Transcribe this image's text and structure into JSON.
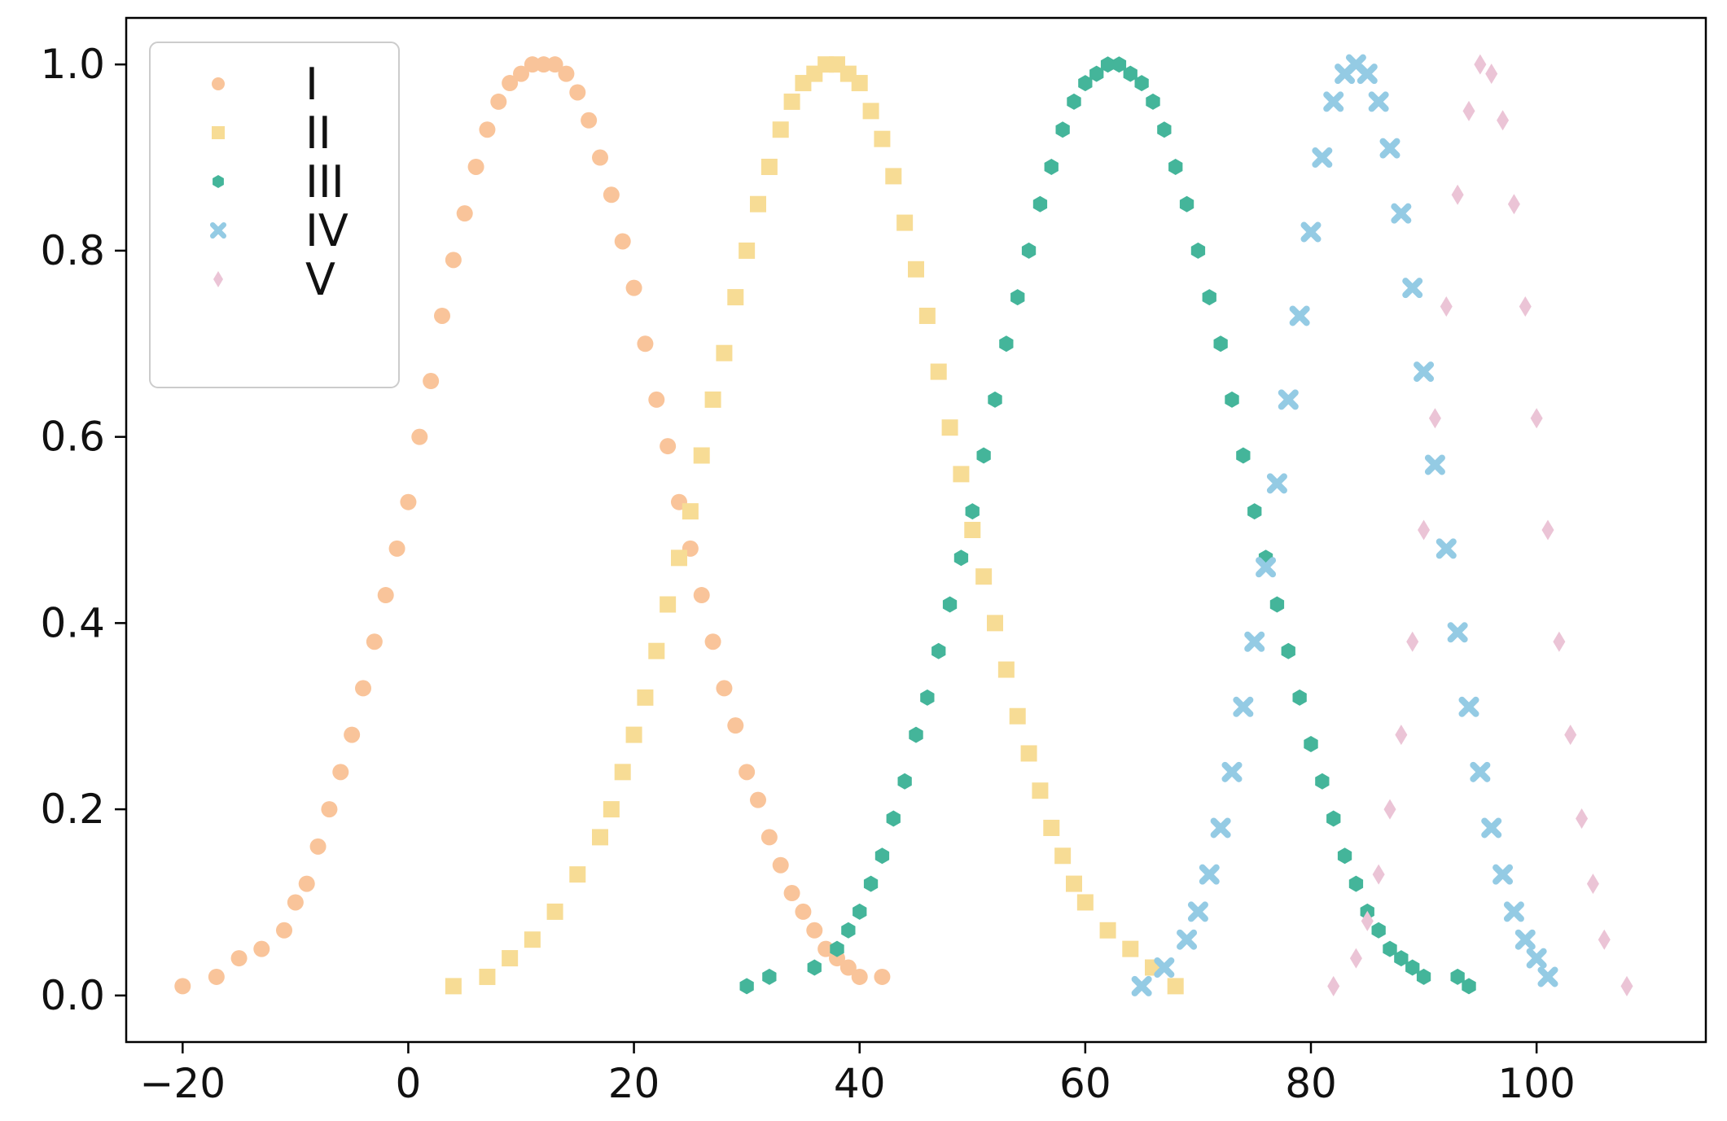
{
  "chart_data": {
    "type": "scatter",
    "title": "",
    "xlabel": "",
    "ylabel": "",
    "xlim": [
      -25,
      115
    ],
    "ylim": [
      -0.05,
      1.05
    ],
    "xticks": [
      -20,
      0,
      20,
      40,
      60,
      80,
      100
    ],
    "xtick_labels": [
      "−20",
      "0",
      "20",
      "40",
      "60",
      "80",
      "100"
    ],
    "yticks": [
      0.0,
      0.2,
      0.4,
      0.6,
      0.8,
      1.0
    ],
    "ytick_labels": [
      "0.0",
      "0.2",
      "0.4",
      "0.6",
      "0.8",
      "1.0"
    ],
    "grid": false,
    "legend_position": "top-left",
    "series": [
      {
        "name": "I",
        "marker": "circle",
        "color": "#F9C49A",
        "x": [
          -20.0,
          -17.0,
          -15.0,
          -13.0,
          -11.0,
          -10.0,
          -9.0,
          -8.0,
          -7.0,
          -6.0,
          -5.0,
          -4.0,
          -3.0,
          -2.0,
          -1.0,
          0.0,
          1.0,
          2.0,
          3.0,
          4.0,
          5.0,
          6.0,
          7.0,
          8.0,
          9.0,
          10.0,
          11.0,
          12.0,
          13.0,
          14.0,
          15.0,
          16.0,
          17.0,
          18.0,
          19.0,
          20.0,
          21.0,
          22.0,
          23.0,
          24.0,
          25.0,
          26.0,
          27.0,
          28.0,
          29.0,
          30.0,
          31.0,
          32.0,
          33.0,
          34.0,
          35.0,
          36.0,
          37.0,
          38.0,
          39.0,
          40.0,
          42.0
        ],
        "y": [
          0.01,
          0.02,
          0.04,
          0.05,
          0.07,
          0.1,
          0.12,
          0.16,
          0.2,
          0.24,
          0.28,
          0.33,
          0.38,
          0.43,
          0.48,
          0.53,
          0.6,
          0.66,
          0.73,
          0.79,
          0.84,
          0.89,
          0.93,
          0.96,
          0.98,
          0.99,
          1.0,
          1.0,
          1.0,
          0.99,
          0.97,
          0.94,
          0.9,
          0.86,
          0.81,
          0.76,
          0.7,
          0.64,
          0.59,
          0.53,
          0.48,
          0.43,
          0.38,
          0.33,
          0.29,
          0.24,
          0.21,
          0.17,
          0.14,
          0.11,
          0.09,
          0.07,
          0.05,
          0.04,
          0.03,
          0.02,
          0.02
        ]
      },
      {
        "name": "II",
        "marker": "square",
        "color": "#F7DC95",
        "x": [
          4.0,
          7.0,
          9.0,
          11.0,
          13.0,
          15.0,
          17.0,
          18.0,
          19.0,
          20.0,
          21.0,
          22.0,
          23.0,
          24.0,
          25.0,
          26.0,
          27.0,
          28.0,
          29.0,
          30.0,
          31.0,
          32.0,
          33.0,
          34.0,
          35.0,
          36.0,
          37.0,
          38.0,
          39.0,
          40.0,
          41.0,
          42.0,
          43.0,
          44.0,
          45.0,
          46.0,
          47.0,
          48.0,
          49.0,
          50.0,
          51.0,
          52.0,
          53.0,
          54.0,
          55.0,
          56.0,
          57.0,
          58.0,
          59.0,
          60.0,
          62.0,
          64.0,
          66.0,
          68.0
        ],
        "y": [
          0.01,
          0.02,
          0.04,
          0.06,
          0.09,
          0.13,
          0.17,
          0.2,
          0.24,
          0.28,
          0.32,
          0.37,
          0.42,
          0.47,
          0.52,
          0.58,
          0.64,
          0.69,
          0.75,
          0.8,
          0.85,
          0.89,
          0.93,
          0.96,
          0.98,
          0.99,
          1.0,
          1.0,
          0.99,
          0.98,
          0.95,
          0.92,
          0.88,
          0.83,
          0.78,
          0.73,
          0.67,
          0.61,
          0.56,
          0.5,
          0.45,
          0.4,
          0.35,
          0.3,
          0.26,
          0.22,
          0.18,
          0.15,
          0.12,
          0.1,
          0.07,
          0.05,
          0.03,
          0.01
        ]
      },
      {
        "name": "III",
        "marker": "hexagon",
        "color": "#44B59A",
        "x": [
          30.0,
          32.0,
          36.0,
          38.0,
          39.0,
          40.0,
          41.0,
          42.0,
          43.0,
          44.0,
          45.0,
          46.0,
          47.0,
          48.0,
          49.0,
          50.0,
          51.0,
          52.0,
          53.0,
          54.0,
          55.0,
          56.0,
          57.0,
          58.0,
          59.0,
          60.0,
          61.0,
          62.0,
          63.0,
          64.0,
          65.0,
          66.0,
          67.0,
          68.0,
          69.0,
          70.0,
          71.0,
          72.0,
          73.0,
          74.0,
          75.0,
          76.0,
          77.0,
          78.0,
          79.0,
          80.0,
          81.0,
          82.0,
          83.0,
          84.0,
          85.0,
          86.0,
          87.0,
          88.0,
          89.0,
          90.0,
          93.0,
          94.0
        ],
        "y": [
          0.01,
          0.02,
          0.03,
          0.05,
          0.07,
          0.09,
          0.12,
          0.15,
          0.19,
          0.23,
          0.28,
          0.32,
          0.37,
          0.42,
          0.47,
          0.52,
          0.58,
          0.64,
          0.7,
          0.75,
          0.8,
          0.85,
          0.89,
          0.93,
          0.96,
          0.98,
          0.99,
          1.0,
          1.0,
          0.99,
          0.98,
          0.96,
          0.93,
          0.89,
          0.85,
          0.8,
          0.75,
          0.7,
          0.64,
          0.58,
          0.52,
          0.47,
          0.42,
          0.37,
          0.32,
          0.27,
          0.23,
          0.19,
          0.15,
          0.12,
          0.09,
          0.07,
          0.05,
          0.04,
          0.03,
          0.02,
          0.02,
          0.01
        ]
      },
      {
        "name": "IV",
        "marker": "x",
        "color": "#94CBE4",
        "x": [
          65.0,
          67.0,
          69.0,
          70.0,
          71.0,
          72.0,
          73.0,
          74.0,
          75.0,
          76.0,
          77.0,
          78.0,
          79.0,
          80.0,
          81.0,
          82.0,
          83.0,
          84.0,
          85.0,
          86.0,
          87.0,
          88.0,
          89.0,
          90.0,
          91.0,
          92.0,
          93.0,
          94.0,
          95.0,
          96.0,
          97.0,
          98.0,
          99.0,
          100.0,
          101.0
        ],
        "y": [
          0.01,
          0.03,
          0.06,
          0.09,
          0.13,
          0.18,
          0.24,
          0.31,
          0.38,
          0.46,
          0.55,
          0.64,
          0.73,
          0.82,
          0.9,
          0.96,
          0.99,
          1.0,
          0.99,
          0.96,
          0.91,
          0.84,
          0.76,
          0.67,
          0.57,
          0.48,
          0.39,
          0.31,
          0.24,
          0.18,
          0.13,
          0.09,
          0.06,
          0.04,
          0.02
        ]
      },
      {
        "name": "V",
        "marker": "diamond",
        "color": "#EBC4D6",
        "x": [
          82.0,
          84.0,
          85.0,
          86.0,
          87.0,
          88.0,
          89.0,
          90.0,
          91.0,
          92.0,
          93.0,
          94.0,
          95.0,
          96.0,
          97.0,
          98.0,
          99.0,
          100.0,
          101.0,
          102.0,
          103.0,
          104.0,
          105.0,
          106.0,
          108.0
        ],
        "y": [
          0.01,
          0.04,
          0.08,
          0.13,
          0.2,
          0.28,
          0.38,
          0.5,
          0.62,
          0.74,
          0.86,
          0.95,
          1.0,
          0.99,
          0.94,
          0.85,
          0.74,
          0.62,
          0.5,
          0.38,
          0.28,
          0.19,
          0.12,
          0.06,
          0.01
        ]
      }
    ]
  }
}
